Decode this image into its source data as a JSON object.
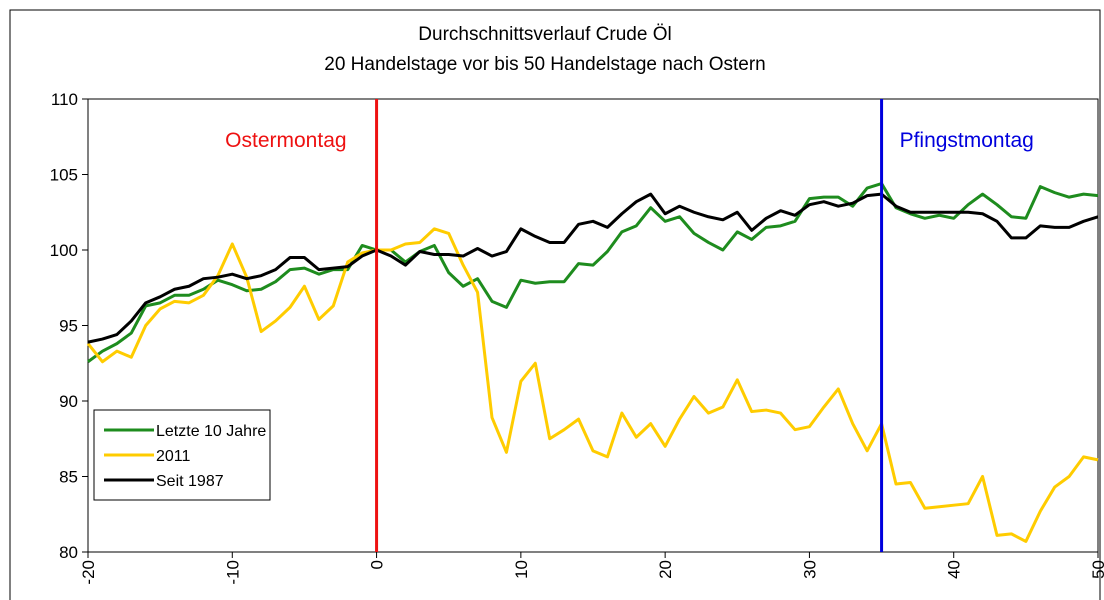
{
  "chart_data": {
    "type": "line",
    "title": "Durchschnittsverlauf Crude Öl",
    "subtitle": "20 Handelstage vor bis 50 Handelstage nach Ostern",
    "x": [
      -20,
      -19,
      -18,
      -17,
      -16,
      -15,
      -14,
      -13,
      -12,
      -11,
      -10,
      -9,
      -8,
      -7,
      -6,
      -5,
      -4,
      -3,
      -2,
      -1,
      0,
      1,
      2,
      3,
      4,
      5,
      6,
      7,
      8,
      9,
      10,
      11,
      12,
      13,
      14,
      15,
      16,
      17,
      18,
      19,
      20,
      21,
      22,
      23,
      24,
      25,
      26,
      27,
      28,
      29,
      30,
      31,
      32,
      33,
      34,
      35,
      36,
      37,
      38,
      39,
      40,
      41,
      42,
      43,
      44,
      45,
      46,
      47,
      48,
      49,
      50
    ],
    "series": [
      {
        "name": "Letzte 10 Jahre",
        "color": "#1e8c1e",
        "values": [
          92.6,
          93.3,
          93.8,
          94.5,
          96.3,
          96.5,
          97,
          97,
          97.4,
          98,
          97.7,
          97.3,
          97.4,
          97.9,
          98.7,
          98.8,
          98.4,
          98.7,
          98.7,
          100.3,
          100,
          100,
          99.2,
          99.9,
          100.3,
          98.5,
          97.6,
          98.1,
          96.6,
          96.2,
          98,
          97.8,
          97.9,
          97.9,
          99.1,
          99,
          99.9,
          101.2,
          101.6,
          102.8,
          101.9,
          102.2,
          101.1,
          100.5,
          100,
          101.2,
          100.7,
          101.5,
          101.6,
          101.9,
          103.4,
          103.5,
          103.5,
          102.9,
          104.1,
          104.4,
          102.8,
          102.4,
          102.1,
          102.3,
          102.1,
          103,
          103.7,
          103,
          102.2,
          102.1,
          104.2,
          103.8,
          103.5,
          103.7,
          103.6
        ]
      },
      {
        "name": "2011",
        "color": "#ffcc00",
        "values": [
          93.8,
          92.6,
          93.3,
          92.9,
          95,
          96.1,
          96.6,
          96.5,
          97,
          98.3,
          100.4,
          98.2,
          94.6,
          95.3,
          96.2,
          97.6,
          95.4,
          96.3,
          99.2,
          99.8,
          100,
          100,
          100.4,
          100.5,
          101.4,
          101.1,
          99,
          97.2,
          88.9,
          86.6,
          91.3,
          92.5,
          87.5,
          88.1,
          88.8,
          86.7,
          86.3,
          89.2,
          87.6,
          88.5,
          87,
          88.8,
          90.3,
          89.2,
          89.6,
          91.4,
          89.3,
          89.4,
          89.2,
          88.1,
          88.3,
          89.6,
          90.8,
          88.5,
          86.7,
          88.5,
          84.5,
          84.6,
          82.9,
          83,
          83.1,
          83.2,
          85,
          81.1,
          81.2,
          80.7,
          82.7,
          84.3,
          85,
          86.3,
          86.1
        ]
      },
      {
        "name": "Seit 1987",
        "color": "#000000",
        "values": [
          93.9,
          94.1,
          94.4,
          95.3,
          96.5,
          96.9,
          97.4,
          97.6,
          98.1,
          98.2,
          98.4,
          98.1,
          98.3,
          98.7,
          99.5,
          99.5,
          98.7,
          98.8,
          98.9,
          99.6,
          100,
          99.6,
          99,
          99.9,
          99.7,
          99.7,
          99.6,
          100.1,
          99.6,
          99.9,
          101.4,
          100.9,
          100.5,
          100.5,
          101.7,
          101.9,
          101.5,
          102.4,
          103.2,
          103.7,
          102.4,
          102.9,
          102.5,
          102.2,
          102,
          102.5,
          101.3,
          102.1,
          102.6,
          102.3,
          103,
          103.2,
          102.9,
          103.1,
          103.6,
          103.7,
          102.9,
          102.5,
          102.5,
          102.5,
          102.5,
          102.5,
          102.4,
          101.9,
          100.8,
          100.8,
          101.6,
          101.5,
          101.5,
          101.9,
          102.2
        ]
      }
    ],
    "vlines": [
      {
        "x": 0,
        "color": "#ee1111",
        "label": "Ostermontag"
      },
      {
        "x": 35,
        "color": "#0000dd",
        "label": "Pfingstmontag"
      }
    ],
    "xlim": [
      -20,
      50
    ],
    "xticks": [
      -20,
      -10,
      0,
      10,
      20,
      30,
      40,
      50
    ],
    "ylim": [
      80,
      110
    ],
    "yticks": [
      80,
      85,
      90,
      95,
      100,
      105,
      110
    ],
    "grid": false,
    "legend": "lower left"
  }
}
